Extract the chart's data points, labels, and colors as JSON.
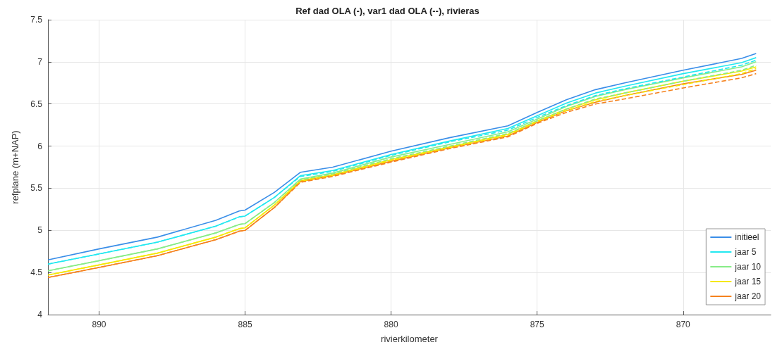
{
  "chart_data": {
    "type": "line",
    "title": "Ref dad OLA (-), var1 dad OLA (--), rivieras",
    "xlabel": "rivierkilometer",
    "ylabel": "refplane (m+NAP)",
    "x": [
      891.75,
      890,
      888,
      886,
      885.2,
      885,
      884,
      883.1,
      882,
      880,
      878,
      876,
      875,
      874,
      873,
      872,
      870,
      868,
      867.5
    ],
    "xlim": [
      891.75,
      867
    ],
    "xticks": [
      890,
      885,
      880,
      875,
      870
    ],
    "ylim": [
      4,
      7.5
    ],
    "yticks": [
      4,
      4.5,
      5,
      5.5,
      6,
      6.5,
      7,
      7.5
    ],
    "grid": true,
    "legend": "bottom right",
    "marker": "none",
    "series": [
      {
        "name": "initieel",
        "color": "#3a8ee8",
        "line_style": "solid",
        "values": [
          4.65,
          4.78,
          4.92,
          5.12,
          5.23,
          5.24,
          5.45,
          5.69,
          5.75,
          5.94,
          6.1,
          6.24,
          6.4,
          6.55,
          6.67,
          6.75,
          6.9,
          7.04,
          7.1
        ]
      },
      {
        "name": "jaar 5",
        "color": "#22e8f0",
        "line_style": "solid",
        "values": [
          4.6,
          4.72,
          4.86,
          5.05,
          5.16,
          5.17,
          5.39,
          5.65,
          5.71,
          5.9,
          6.06,
          6.21,
          6.36,
          6.51,
          6.63,
          6.71,
          6.86,
          6.99,
          7.05
        ]
      },
      {
        "name": "jaar 10",
        "color": "#88ec88",
        "line_style": "solid",
        "values": [
          4.52,
          4.64,
          4.78,
          4.97,
          5.07,
          5.08,
          5.33,
          5.61,
          5.68,
          5.87,
          6.02,
          6.17,
          6.32,
          6.47,
          6.59,
          6.67,
          6.81,
          6.94,
          7.0
        ]
      },
      {
        "name": "jaar 15",
        "color": "#f5e800",
        "line_style": "solid",
        "values": [
          4.47,
          4.59,
          4.73,
          4.92,
          5.02,
          5.03,
          5.3,
          5.59,
          5.66,
          5.84,
          5.99,
          6.14,
          6.3,
          6.44,
          6.55,
          6.63,
          6.77,
          6.89,
          6.94
        ]
      },
      {
        "name": "jaar 20",
        "color": "#f5821e",
        "line_style": "solid",
        "values": [
          4.44,
          4.56,
          4.7,
          4.89,
          4.99,
          5.0,
          5.27,
          5.58,
          5.65,
          5.82,
          5.98,
          6.12,
          6.28,
          6.42,
          6.52,
          6.6,
          6.74,
          6.85,
          6.9
        ]
      },
      {
        "color": "#22e8f0",
        "line_style": "dashed",
        "values": [
          4.6,
          4.72,
          4.86,
          5.05,
          5.16,
          5.17,
          5.39,
          5.64,
          5.7,
          5.89,
          6.05,
          6.19,
          6.34,
          6.48,
          6.6,
          6.68,
          6.82,
          6.96,
          7.02
        ]
      },
      {
        "color": "#88ec88",
        "line_style": "dashed",
        "values": [
          4.52,
          4.64,
          4.78,
          4.97,
          5.07,
          5.08,
          5.33,
          5.6,
          5.67,
          5.85,
          6.0,
          6.15,
          6.3,
          6.44,
          6.56,
          6.63,
          6.77,
          6.9,
          6.96
        ]
      },
      {
        "color": "#f5e800",
        "line_style": "dashed",
        "values": [
          4.47,
          4.59,
          4.73,
          4.92,
          5.02,
          5.03,
          5.3,
          5.58,
          5.65,
          5.83,
          5.98,
          6.13,
          6.29,
          6.42,
          6.53,
          6.6,
          6.73,
          6.86,
          6.92
        ]
      },
      {
        "color": "#f5821e",
        "line_style": "dashed",
        "values": [
          4.44,
          4.56,
          4.7,
          4.89,
          4.99,
          5.0,
          5.27,
          5.57,
          5.64,
          5.81,
          5.97,
          6.11,
          6.27,
          6.4,
          6.5,
          6.56,
          6.69,
          6.81,
          6.86
        ]
      }
    ]
  }
}
